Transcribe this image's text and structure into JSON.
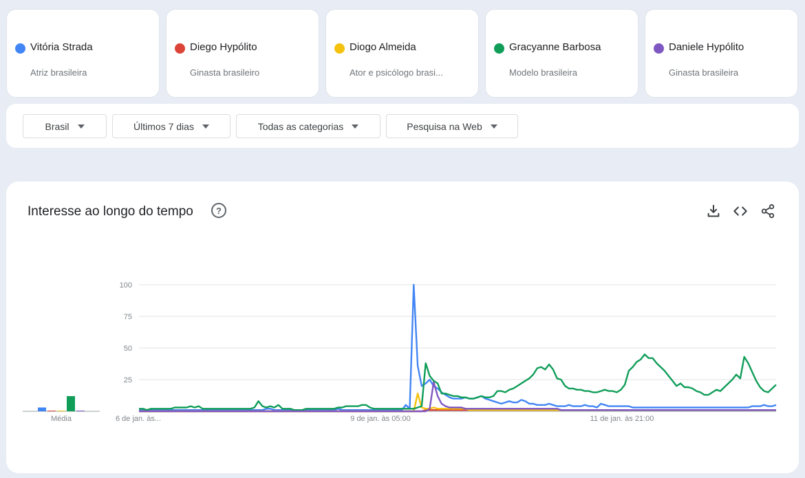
{
  "terms": [
    {
      "name": "Vitória Strada",
      "desc": "Atriz brasileira",
      "color": "#4285f4"
    },
    {
      "name": "Diego Hypólito",
      "desc": "Ginasta brasileiro",
      "color": "#db4437"
    },
    {
      "name": "Diogo Almeida",
      "desc": "Ator e psicólogo brasi...",
      "color": "#f4c20d"
    },
    {
      "name": "Gracyanne Barbosa",
      "desc": "Modelo brasileira",
      "color": "#0f9d58"
    },
    {
      "name": "Daniele Hypólito",
      "desc": "Ginasta brasileira",
      "color": "#7e57c2"
    }
  ],
  "filters": {
    "region": "Brasil",
    "period": "Últimos 7 dias",
    "category": "Todas as categorias",
    "search_type": "Pesquisa na Web"
  },
  "chart_card": {
    "title": "Interesse ao longo do tempo",
    "help_icon": "help-circle-icon",
    "download_icon": "download-icon",
    "embed_icon": "code-icon",
    "share_icon": "share-icon"
  },
  "chart_data": {
    "type": "line",
    "ylim": [
      0,
      100
    ],
    "yticks": [
      25,
      50,
      75,
      100
    ],
    "grid": true,
    "x_labels": [
      "6 de jan. às...",
      "9 de jan. às 05:00",
      "11 de jan. às 21:00"
    ],
    "average": {
      "label": "Média",
      "values": [
        3,
        0.5,
        0.5,
        12,
        0.5
      ]
    },
    "series": [
      {
        "name": "Vitória Strada",
        "color": "#4285f4",
        "values": [
          1,
          1,
          1,
          1,
          1,
          1,
          1,
          1,
          1,
          1,
          1,
          1,
          1,
          1,
          1,
          1,
          1,
          1,
          1,
          1,
          1,
          1,
          1,
          1,
          1,
          1,
          1,
          1,
          1,
          1,
          1,
          1,
          2,
          2,
          1,
          1,
          1,
          1,
          1,
          1,
          1,
          1,
          1,
          1,
          1,
          1,
          1,
          1,
          1,
          1,
          2,
          1,
          1,
          1,
          1,
          1,
          1,
          1,
          1,
          1,
          1,
          1,
          1,
          1,
          1,
          1,
          1,
          5,
          2,
          100,
          36,
          20,
          22,
          25,
          20,
          18,
          15,
          13,
          11,
          10,
          10,
          10,
          11,
          10,
          10,
          11,
          12,
          10,
          9,
          8,
          7,
          6,
          7,
          8,
          7,
          7,
          9,
          8,
          6,
          6,
          5,
          5,
          5,
          6,
          5,
          4,
          4,
          4,
          5,
          4,
          4,
          4,
          5,
          4,
          4,
          3,
          6,
          5,
          4,
          4,
          4,
          4,
          4,
          4,
          3,
          3,
          3,
          3,
          3,
          3,
          3,
          3,
          3,
          3,
          3,
          3,
          3,
          3,
          3,
          3,
          3,
          3,
          3,
          3,
          3,
          3,
          3,
          3,
          3,
          3,
          3,
          3,
          3,
          3,
          4,
          4,
          4,
          5,
          4,
          4,
          5
        ]
      },
      {
        "name": "Diego Hypólito",
        "color": "#db4437",
        "values": [
          0,
          0,
          0,
          0,
          0,
          0,
          0,
          0,
          0,
          0,
          0,
          0,
          0,
          0,
          0,
          0,
          0,
          0,
          0,
          0,
          0,
          0,
          0,
          0,
          0,
          0,
          0,
          0,
          0,
          0,
          0,
          0,
          0,
          0,
          0,
          0,
          0,
          0,
          0,
          0,
          0,
          0,
          0,
          0,
          0,
          0,
          0,
          0,
          0,
          0,
          0,
          0,
          0,
          0,
          0,
          0,
          0,
          0,
          0,
          0,
          0,
          0,
          0,
          0,
          0,
          0,
          0,
          0,
          0,
          0,
          0,
          0,
          1,
          1,
          1,
          1,
          1,
          1,
          1,
          1,
          1,
          1,
          1,
          1,
          1,
          1,
          1,
          1,
          1,
          1,
          1,
          1,
          1,
          1,
          1,
          1,
          1,
          1,
          1,
          1,
          1,
          1,
          1,
          1,
          1,
          1,
          1,
          1,
          1,
          1,
          1,
          1,
          1,
          1,
          1,
          1,
          1,
          1,
          1,
          1,
          1,
          1,
          1,
          1,
          1,
          1,
          1,
          1,
          1,
          1,
          1,
          1,
          1,
          1,
          1,
          1,
          1,
          1,
          1,
          1,
          1,
          1,
          1,
          1,
          1,
          1,
          1,
          1,
          1,
          1,
          1,
          1,
          1,
          1,
          1,
          1,
          1,
          1,
          1,
          1,
          1
        ]
      },
      {
        "name": "Diogo Almeida",
        "color": "#f4c20d",
        "values": [
          0,
          0,
          0,
          0,
          0,
          0,
          0,
          0,
          0,
          0,
          0,
          0,
          0,
          0,
          0,
          0,
          0,
          0,
          0,
          0,
          0,
          0,
          0,
          0,
          0,
          0,
          0,
          0,
          0,
          0,
          0,
          0,
          0,
          0,
          0,
          0,
          0,
          0,
          0,
          0,
          0,
          0,
          0,
          0,
          0,
          0,
          0,
          0,
          0,
          0,
          0,
          0,
          0,
          0,
          0,
          0,
          0,
          0,
          0,
          0,
          0,
          0,
          0,
          0,
          0,
          0,
          0,
          0,
          0,
          0,
          14,
          3,
          2,
          2,
          3,
          2,
          2,
          2,
          2,
          2,
          2,
          2,
          2,
          1,
          1,
          1,
          1,
          1,
          1,
          1,
          1,
          1,
          1,
          1,
          1,
          1,
          1,
          1,
          1,
          1,
          1,
          1,
          1,
          1,
          1,
          1,
          1,
          1,
          1,
          1,
          1,
          1,
          1,
          1,
          1,
          1,
          1,
          1,
          1,
          1,
          1,
          1,
          1,
          1,
          1,
          1,
          1,
          1,
          1,
          1,
          1,
          1,
          1,
          1,
          1,
          1,
          1,
          1,
          1,
          1,
          1,
          1,
          1,
          1,
          1,
          1,
          1,
          1,
          1,
          1,
          1,
          1,
          1,
          1,
          1,
          1,
          1,
          1,
          1,
          1,
          1
        ]
      },
      {
        "name": "Gracyanne Barbosa",
        "color": "#0f9d58",
        "values": [
          2,
          2,
          1,
          2,
          2,
          2,
          2,
          2,
          2,
          3,
          3,
          3,
          3,
          4,
          3,
          4,
          2,
          2,
          2,
          2,
          2,
          2,
          2,
          2,
          2,
          2,
          2,
          2,
          2,
          3,
          8,
          4,
          3,
          4,
          3,
          5,
          2,
          2,
          2,
          1,
          1,
          1,
          2,
          2,
          2,
          2,
          2,
          2,
          2,
          2,
          3,
          3,
          4,
          4,
          4,
          4,
          5,
          5,
          3,
          2,
          2,
          2,
          2,
          2,
          2,
          2,
          2,
          2,
          2,
          2,
          3,
          4,
          38,
          28,
          24,
          22,
          14,
          14,
          13,
          12,
          12,
          11,
          11,
          10,
          10,
          11,
          12,
          11,
          11,
          12,
          16,
          16,
          15,
          17,
          18,
          20,
          22,
          24,
          26,
          29,
          34,
          35,
          33,
          37,
          33,
          26,
          25,
          20,
          18,
          18,
          17,
          17,
          16,
          16,
          15,
          15,
          16,
          17,
          16,
          16,
          15,
          17,
          21,
          32,
          35,
          39,
          41,
          45,
          42,
          42,
          38,
          35,
          32,
          28,
          24,
          20,
          22,
          19,
          19,
          18,
          16,
          15,
          13,
          13,
          15,
          17,
          16,
          19,
          22,
          25,
          29,
          26,
          43,
          38,
          31,
          24,
          19,
          16,
          15,
          18,
          21
        ]
      },
      {
        "name": "Daniele Hypólito",
        "color": "#7e57c2",
        "values": [
          0,
          0,
          0,
          0,
          0,
          0,
          0,
          0,
          0,
          0,
          0,
          0,
          0,
          0,
          0,
          0,
          0,
          0,
          0,
          0,
          0,
          0,
          0,
          0,
          0,
          0,
          0,
          0,
          0,
          0,
          0,
          0,
          0,
          0,
          0,
          0,
          0,
          0,
          0,
          0,
          0,
          0,
          0,
          0,
          0,
          0,
          0,
          0,
          0,
          0,
          0,
          0,
          0,
          0,
          0,
          0,
          0,
          0,
          0,
          0,
          0,
          0,
          0,
          0,
          0,
          0,
          0,
          0,
          0,
          0,
          0,
          0,
          0,
          2,
          23,
          12,
          6,
          4,
          3,
          3,
          3,
          3,
          2,
          2,
          2,
          2,
          2,
          2,
          2,
          2,
          2,
          2,
          2,
          2,
          2,
          2,
          2,
          2,
          2,
          2,
          2,
          2,
          2,
          2,
          2,
          2,
          1,
          1,
          1,
          1,
          1,
          1,
          1,
          1,
          1,
          1,
          1,
          1,
          1,
          1,
          1,
          1,
          1,
          1,
          1,
          1,
          1,
          1,
          1,
          1,
          1,
          1,
          1,
          1,
          1,
          1,
          1,
          1,
          1,
          1,
          1,
          1,
          1,
          1,
          1,
          1,
          1,
          1,
          1,
          1,
          1,
          1,
          1,
          1,
          1,
          1,
          1,
          1,
          1,
          1,
          1
        ]
      }
    ]
  }
}
